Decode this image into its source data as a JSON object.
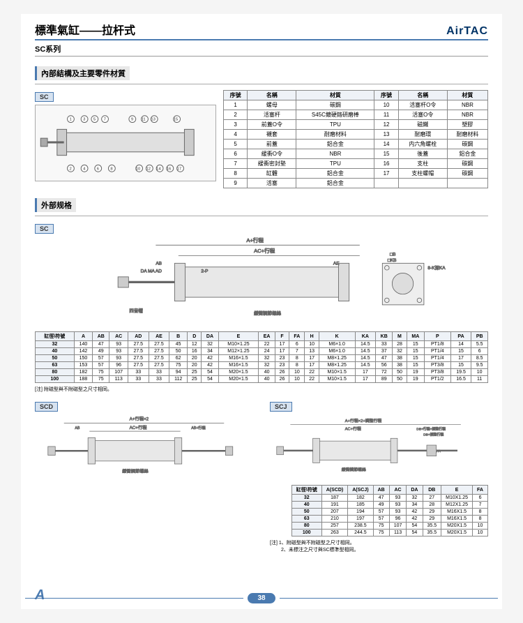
{
  "header": {
    "title": "標準氣缸——拉杆式",
    "brand": "AirTAC",
    "subtitle": "SC系列"
  },
  "section1": {
    "title": "內部結構及主要零件材質",
    "tag": "SC",
    "material_headers": [
      "序號",
      "名稱",
      "材質",
      "序號",
      "名稱",
      "材質"
    ],
    "material_rows": [
      [
        "1",
        "螺母",
        "碳鋼",
        "10",
        "活塞杆O令",
        "NBR"
      ],
      [
        "2",
        "活塞杆",
        "S45C鍍硬鉻研磨棒",
        "11",
        "活塞O令",
        "NBR"
      ],
      [
        "3",
        "前蓋O令",
        "TPU",
        "12",
        "磁鐵",
        "塑膠"
      ],
      [
        "4",
        "襯套",
        "耐磨材料",
        "13",
        "耐磨環",
        "耐磨材料"
      ],
      [
        "5",
        "前蓋",
        "鋁合金",
        "14",
        "内六角螺栓",
        "碳鋼"
      ],
      [
        "6",
        "緩衝O令",
        "NBR",
        "15",
        "後蓋",
        "鋁合金"
      ],
      [
        "7",
        "緩衝密封墊",
        "TPU",
        "16",
        "支柱",
        "碳鋼"
      ],
      [
        "8",
        "缸體",
        "鋁合金",
        "17",
        "支柱螺帽",
        "碳鋼"
      ],
      [
        "9",
        "活塞",
        "鋁合金",
        "",
        "",
        ""
      ]
    ]
  },
  "section2": {
    "title": "外部规格",
    "tag": "SC",
    "spec_headers": [
      "缸徑\\符號",
      "A",
      "AB",
      "AC",
      "AD",
      "AE",
      "B",
      "D",
      "DA",
      "E",
      "EA",
      "F",
      "FA",
      "H",
      "K",
      "KA",
      "KB",
      "M",
      "MA",
      "P",
      "PA",
      "PB"
    ],
    "spec_rows": [
      [
        "32",
        "140",
        "47",
        "93",
        "27.5",
        "27.5",
        "45",
        "12",
        "32",
        "M10×1.25",
        "22",
        "17",
        "6",
        "10",
        "M6×1.0",
        "14.5",
        "33",
        "28",
        "15",
        "PT1/8",
        "14",
        "5.5"
      ],
      [
        "40",
        "142",
        "49",
        "93",
        "27.5",
        "27.5",
        "50",
        "16",
        "34",
        "M12×1.25",
        "24",
        "17",
        "7",
        "13",
        "M6×1.0",
        "14.5",
        "37",
        "32",
        "15",
        "PT1/4",
        "15",
        "6"
      ],
      [
        "50",
        "150",
        "57",
        "93",
        "27.5",
        "27.5",
        "62",
        "20",
        "42",
        "M16×1.5",
        "32",
        "23",
        "8",
        "17",
        "M8×1.25",
        "14.5",
        "47",
        "38",
        "15",
        "PT1/4",
        "17",
        "8.5"
      ],
      [
        "63",
        "153",
        "57",
        "96",
        "27.5",
        "27.5",
        "75",
        "20",
        "42",
        "M16×1.5",
        "32",
        "23",
        "8",
        "17",
        "M8×1.25",
        "14.5",
        "56",
        "38",
        "15",
        "PT3/8",
        "15",
        "9.5"
      ],
      [
        "80",
        "182",
        "75",
        "107",
        "33",
        "33",
        "94",
        "25",
        "54",
        "M20×1.5",
        "40",
        "26",
        "10",
        "22",
        "M10×1.5",
        "17",
        "72",
        "50",
        "19",
        "PT3/8",
        "19.5",
        "10"
      ],
      [
        "100",
        "188",
        "75",
        "113",
        "33",
        "33",
        "112",
        "25",
        "54",
        "M20×1.5",
        "40",
        "26",
        "10",
        "22",
        "M10×1.5",
        "17",
        "89",
        "50",
        "19",
        "PT1/2",
        "16.5",
        "11"
      ]
    ],
    "note": "[注] 附磁型與不附磁型之尺寸相同。"
  },
  "section3": {
    "tag_left": "SCD",
    "tag_right": "SCJ",
    "spec2_headers": [
      "缸徑\\符號",
      "A(SCD)",
      "A(SCJ)",
      "AB",
      "AC",
      "DA",
      "DB",
      "E",
      "FA"
    ],
    "spec2_rows": [
      [
        "32",
        "187",
        "182",
        "47",
        "93",
        "32",
        "27",
        "M10X1.25",
        "6"
      ],
      [
        "40",
        "191",
        "185",
        "49",
        "93",
        "34",
        "28",
        "M12X1.25",
        "7"
      ],
      [
        "50",
        "207",
        "194",
        "57",
        "93",
        "42",
        "29",
        "M16X1.5",
        "8"
      ],
      [
        "63",
        "210",
        "197",
        "57",
        "96",
        "42",
        "29",
        "M16X1.5",
        "8"
      ],
      [
        "80",
        "257",
        "238.5",
        "75",
        "107",
        "54",
        "35.5",
        "M20X1.5",
        "10"
      ],
      [
        "100",
        "263",
        "244.5",
        "75",
        "113",
        "54",
        "35.5",
        "M20X1.5",
        "10"
      ]
    ],
    "note": "[注] 1、附磁型與不附磁型之尺寸相同。\n　　 2、未標注之尺寸與SC標準型相同。"
  },
  "footer": {
    "page": "38"
  }
}
